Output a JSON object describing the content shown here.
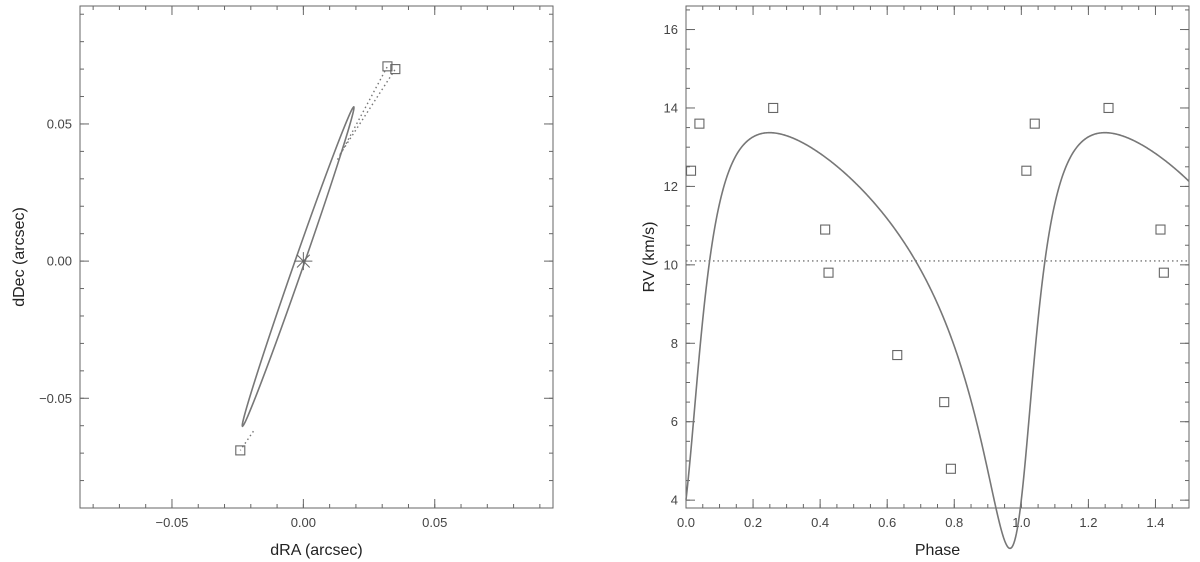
{
  "chart_data": [
    {
      "type": "scatter",
      "title": "",
      "xlabel": "dRA (arcsec)",
      "ylabel": "dDec (arcsec)",
      "xlim": [
        -0.085,
        0.095
      ],
      "ylim": [
        -0.09,
        0.093
      ],
      "xticks": [
        -0.05,
        0.0,
        0.05
      ],
      "yticks": [
        -0.05,
        0.0,
        0.05
      ],
      "xtick_labels": [
        "−0.05",
        "0.00",
        "0.05"
      ],
      "ytick_labels": [
        "−0.05",
        "0.00",
        "0.05"
      ],
      "grid": false,
      "primary_marker": "asterisk",
      "primary": {
        "x": 0.0,
        "y": 0.0
      },
      "orbit_ellipse": {
        "center_x": -0.002,
        "center_y": -0.002,
        "semi_major": 0.062,
        "semi_minor": 0.0018,
        "angle_deg": 70
      },
      "points": [
        {
          "x": 0.032,
          "y": 0.071,
          "orbit_x": 0.013,
          "orbit_y": 0.037
        },
        {
          "x": 0.035,
          "y": 0.07,
          "orbit_x": 0.014,
          "orbit_y": 0.039
        },
        {
          "x": -0.024,
          "y": -0.069,
          "orbit_x": -0.019,
          "orbit_y": -0.062
        }
      ]
    },
    {
      "type": "line",
      "title": "",
      "xlabel": "Phase",
      "ylabel": "RV (km/s)",
      "xlim": [
        0.0,
        1.5
      ],
      "ylim": [
        3.8,
        16.6
      ],
      "xticks": [
        0.0,
        0.2,
        0.4,
        0.6,
        0.8,
        1.0,
        1.2,
        1.4
      ],
      "yticks": [
        4,
        6,
        8,
        10,
        12,
        14,
        16
      ],
      "xtick_labels": [
        "0.0",
        "0.2",
        "0.4",
        "0.6",
        "0.8",
        "1.0",
        "1.2",
        "1.4"
      ],
      "ytick_labels": [
        "4",
        "6",
        "8",
        "10",
        "12",
        "14",
        "16"
      ],
      "grid": false,
      "systemic_velocity": 10.1,
      "model": {
        "P": 1.0,
        "T0": 0.0,
        "K": 5.3,
        "e": 0.5,
        "omega_deg": 220,
        "gamma": 10.1
      },
      "points": [
        {
          "x": 0.015,
          "y": 12.4
        },
        {
          "x": 0.04,
          "y": 13.6
        },
        {
          "x": 0.26,
          "y": 14.0
        },
        {
          "x": 0.415,
          "y": 10.9
        },
        {
          "x": 0.425,
          "y": 9.8
        },
        {
          "x": 0.63,
          "y": 7.7
        },
        {
          "x": 0.77,
          "y": 6.5
        },
        {
          "x": 0.79,
          "y": 4.8
        },
        {
          "x": 1.015,
          "y": 12.4
        },
        {
          "x": 1.04,
          "y": 13.6
        },
        {
          "x": 1.26,
          "y": 14.0
        },
        {
          "x": 1.415,
          "y": 10.9
        },
        {
          "x": 1.425,
          "y": 9.8
        }
      ]
    }
  ]
}
